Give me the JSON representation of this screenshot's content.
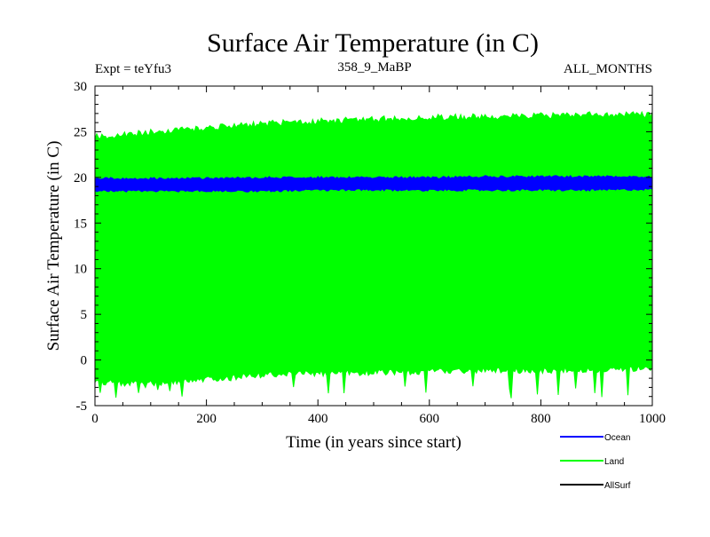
{
  "chart_data": {
    "type": "line",
    "title": "Surface Air Temperature (in C)",
    "subtitle_left": "Expt = teYfu3",
    "subtitle_center": "358_9_MaBP",
    "subtitle_right": "ALL_MONTHS",
    "xlabel": "Time (in years since start)",
    "ylabel": "Surface Air Temperature (in C)",
    "xlim": [
      0,
      1000
    ],
    "ylim": [
      -5,
      30
    ],
    "xticks": [
      0,
      200,
      400,
      600,
      800,
      1000
    ],
    "xtick_labels": [
      "0",
      "200",
      "400",
      "600",
      "800",
      "1000"
    ],
    "yticks": [
      -5,
      0,
      5,
      10,
      15,
      20,
      25,
      30
    ],
    "ytick_labels": [
      "-5",
      "0",
      "5",
      "10",
      "15",
      "20",
      "25",
      "30"
    ],
    "series": [
      {
        "name": "Land",
        "color": "#00ff00",
        "style": "seasonal-band",
        "x": [
          0,
          100,
          200,
          300,
          400,
          500,
          600,
          700,
          800,
          900,
          1000
        ],
        "upper": [
          24.8,
          25.3,
          25.8,
          26.2,
          26.5,
          26.7,
          26.9,
          27.0,
          27.1,
          27.2,
          27.2
        ],
        "lower": [
          -2.8,
          -2.9,
          -2.5,
          -2.0,
          -1.8,
          -1.7,
          -1.6,
          -1.5,
          -1.5,
          -1.4,
          -1.2
        ],
        "minimum": -4.2
      },
      {
        "name": "Ocean",
        "color": "#0000ff",
        "style": "seasonal-band",
        "x": [
          0,
          100,
          200,
          300,
          400,
          500,
          600,
          700,
          800,
          900,
          1000
        ],
        "upper": [
          20.0,
          20.0,
          20.0,
          20.1,
          20.1,
          20.1,
          20.1,
          20.2,
          20.2,
          20.2,
          20.2
        ],
        "lower": [
          18.4,
          18.4,
          18.4,
          18.4,
          18.5,
          18.5,
          18.5,
          18.5,
          18.5,
          18.5,
          18.6
        ]
      },
      {
        "name": "AllSurf",
        "color": "#000000",
        "style": "line",
        "x": [],
        "values": []
      }
    ],
    "legend": [
      "Ocean",
      "Land",
      "AllSurf"
    ],
    "legend_position": "bottom-right"
  }
}
